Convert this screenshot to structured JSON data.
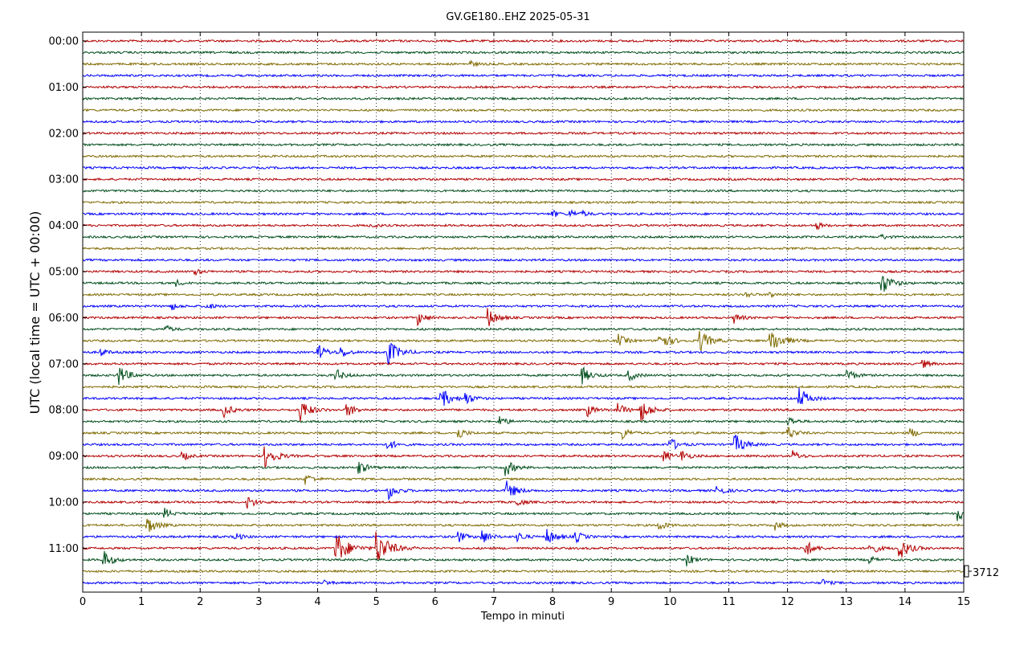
{
  "chart_data": {
    "type": "line",
    "title": "GV.GE180..EHZ 2025-05-31",
    "xlabel": "Tempo in minuti",
    "ylabel": "UTC (local time = UTC + 00:00)",
    "xlim": [
      0,
      15
    ],
    "x_ticks": [
      "0",
      "1",
      "2",
      "3",
      "4",
      "5",
      "6",
      "7",
      "8",
      "9",
      "10",
      "11",
      "12",
      "13",
      "14",
      "15"
    ],
    "y_ticks": [
      "00:00",
      "01:00",
      "02:00",
      "03:00",
      "04:00",
      "05:00",
      "06:00",
      "07:00",
      "08:00",
      "09:00",
      "10:00",
      "11:00"
    ],
    "scale_label": "3712",
    "grid": "vertical dotted at each minute",
    "trace_colors": [
      "#b30000",
      "#004d1a",
      "#7f6a00",
      "#0000ff"
    ],
    "traces_per_hour": 4,
    "trace_start_minutes": [
      "00:00",
      "00:15",
      "00:30",
      "00:45",
      "01:00",
      "01:15",
      "01:30",
      "01:45",
      "02:00",
      "02:15",
      "02:30",
      "02:45",
      "03:00",
      "03:15",
      "03:30",
      "03:45",
      "04:00",
      "04:15",
      "04:30",
      "04:45",
      "05:00",
      "05:15",
      "05:30",
      "05:45",
      "06:00",
      "06:15",
      "06:30",
      "06:45",
      "07:00",
      "07:15",
      "07:30",
      "07:45",
      "08:00",
      "08:15",
      "08:30",
      "08:45",
      "09:00",
      "09:15",
      "09:30",
      "09:45",
      "10:00",
      "10:15",
      "10:30",
      "10:45",
      "11:00",
      "11:15",
      "11:30",
      "11:45"
    ],
    "events": [
      {
        "trace": 2,
        "t": 6.6,
        "amp": 0.4
      },
      {
        "trace": 15,
        "t": 8.0,
        "amp": 0.5
      },
      {
        "trace": 15,
        "t": 8.3,
        "amp": 0.6
      },
      {
        "trace": 15,
        "t": 8.5,
        "amp": 0.4
      },
      {
        "trace": 16,
        "t": 4.9,
        "amp": 0.4
      },
      {
        "trace": 16,
        "t": 12.5,
        "amp": 0.5
      },
      {
        "trace": 17,
        "t": 13.6,
        "amp": 0.4
      },
      {
        "trace": 20,
        "t": 1.9,
        "amp": 0.5
      },
      {
        "trace": 21,
        "t": 1.6,
        "amp": 0.4
      },
      {
        "trace": 21,
        "t": 13.6,
        "amp": 1.6
      },
      {
        "trace": 22,
        "t": 11.3,
        "amp": 0.4
      },
      {
        "trace": 22,
        "t": 11.7,
        "amp": 0.5
      },
      {
        "trace": 23,
        "t": 1.5,
        "amp": 0.6
      },
      {
        "trace": 23,
        "t": 2.1,
        "amp": 0.6
      },
      {
        "trace": 24,
        "t": 5.7,
        "amp": 1.0
      },
      {
        "trace": 24,
        "t": 6.9,
        "amp": 1.3
      },
      {
        "trace": 24,
        "t": 11.1,
        "amp": 0.7
      },
      {
        "trace": 25,
        "t": 1.4,
        "amp": 0.6
      },
      {
        "trace": 26,
        "t": 9.1,
        "amp": 1.0
      },
      {
        "trace": 26,
        "t": 9.8,
        "amp": 1.6
      },
      {
        "trace": 26,
        "t": 10.5,
        "amp": 1.6
      },
      {
        "trace": 26,
        "t": 11.7,
        "amp": 2.0
      },
      {
        "trace": 27,
        "t": 0.3,
        "amp": 0.6
      },
      {
        "trace": 27,
        "t": 4.0,
        "amp": 1.2
      },
      {
        "trace": 27,
        "t": 4.4,
        "amp": 0.8
      },
      {
        "trace": 27,
        "t": 5.2,
        "amp": 1.8
      },
      {
        "trace": 28,
        "t": 14.3,
        "amp": 0.6
      },
      {
        "trace": 29,
        "t": 0.6,
        "amp": 1.5
      },
      {
        "trace": 29,
        "t": 4.3,
        "amp": 1.0
      },
      {
        "trace": 29,
        "t": 8.5,
        "amp": 1.2
      },
      {
        "trace": 29,
        "t": 9.3,
        "amp": 0.8
      },
      {
        "trace": 29,
        "t": 13.0,
        "amp": 1.0
      },
      {
        "trace": 31,
        "t": 6.1,
        "amp": 1.5
      },
      {
        "trace": 31,
        "t": 6.5,
        "amp": 1.0
      },
      {
        "trace": 31,
        "t": 12.2,
        "amp": 1.5
      },
      {
        "trace": 32,
        "t": 2.4,
        "amp": 1.0
      },
      {
        "trace": 32,
        "t": 3.7,
        "amp": 1.6
      },
      {
        "trace": 32,
        "t": 4.5,
        "amp": 1.0
      },
      {
        "trace": 32,
        "t": 8.6,
        "amp": 0.8
      },
      {
        "trace": 32,
        "t": 9.1,
        "amp": 1.0
      },
      {
        "trace": 32,
        "t": 9.5,
        "amp": 1.6
      },
      {
        "trace": 33,
        "t": 7.1,
        "amp": 0.8
      },
      {
        "trace": 33,
        "t": 12.0,
        "amp": 0.8
      },
      {
        "trace": 34,
        "t": 6.4,
        "amp": 0.8
      },
      {
        "trace": 34,
        "t": 9.2,
        "amp": 0.8
      },
      {
        "trace": 34,
        "t": 12.0,
        "amp": 1.0
      },
      {
        "trace": 34,
        "t": 14.1,
        "amp": 0.7
      },
      {
        "trace": 35,
        "t": 5.2,
        "amp": 0.8
      },
      {
        "trace": 35,
        "t": 10.0,
        "amp": 1.0
      },
      {
        "trace": 35,
        "t": 11.1,
        "amp": 1.5
      },
      {
        "trace": 36,
        "t": 1.7,
        "amp": 0.6
      },
      {
        "trace": 36,
        "t": 3.1,
        "amp": 1.7
      },
      {
        "trace": 36,
        "t": 9.9,
        "amp": 0.8
      },
      {
        "trace": 36,
        "t": 10.2,
        "amp": 0.8
      },
      {
        "trace": 36,
        "t": 12.1,
        "amp": 0.7
      },
      {
        "trace": 37,
        "t": 4.7,
        "amp": 1.0
      },
      {
        "trace": 37,
        "t": 7.2,
        "amp": 1.2
      },
      {
        "trace": 38,
        "t": 3.8,
        "amp": 0.8
      },
      {
        "trace": 39,
        "t": 5.2,
        "amp": 1.2
      },
      {
        "trace": 39,
        "t": 7.2,
        "amp": 1.5
      },
      {
        "trace": 39,
        "t": 10.8,
        "amp": 0.8
      },
      {
        "trace": 40,
        "t": 2.8,
        "amp": 1.0
      },
      {
        "trace": 40,
        "t": 7.4,
        "amp": 0.6
      },
      {
        "trace": 41,
        "t": 1.4,
        "amp": 0.7
      },
      {
        "trace": 41,
        "t": 14.9,
        "amp": 1.0
      },
      {
        "trace": 42,
        "t": 1.1,
        "amp": 1.3
      },
      {
        "trace": 42,
        "t": 9.8,
        "amp": 0.8
      },
      {
        "trace": 42,
        "t": 11.8,
        "amp": 0.6
      },
      {
        "trace": 43,
        "t": 2.6,
        "amp": 0.6
      },
      {
        "trace": 43,
        "t": 6.4,
        "amp": 0.8
      },
      {
        "trace": 43,
        "t": 6.8,
        "amp": 1.0
      },
      {
        "trace": 43,
        "t": 7.4,
        "amp": 0.8
      },
      {
        "trace": 43,
        "t": 7.9,
        "amp": 1.2
      },
      {
        "trace": 43,
        "t": 8.4,
        "amp": 0.8
      },
      {
        "trace": 44,
        "t": 4.3,
        "amp": 2.4
      },
      {
        "trace": 44,
        "t": 5.0,
        "amp": 2.5
      },
      {
        "trace": 44,
        "t": 12.3,
        "amp": 1.2
      },
      {
        "trace": 44,
        "t": 13.4,
        "amp": 1.0
      },
      {
        "trace": 44,
        "t": 13.9,
        "amp": 1.6
      },
      {
        "trace": 45,
        "t": 0.35,
        "amp": 1.3
      },
      {
        "trace": 45,
        "t": 10.3,
        "amp": 0.8
      },
      {
        "trace": 45,
        "t": 13.4,
        "amp": 0.5
      },
      {
        "trace": 47,
        "t": 4.1,
        "amp": 0.4
      },
      {
        "trace": 47,
        "t": 12.6,
        "amp": 0.5
      }
    ]
  }
}
